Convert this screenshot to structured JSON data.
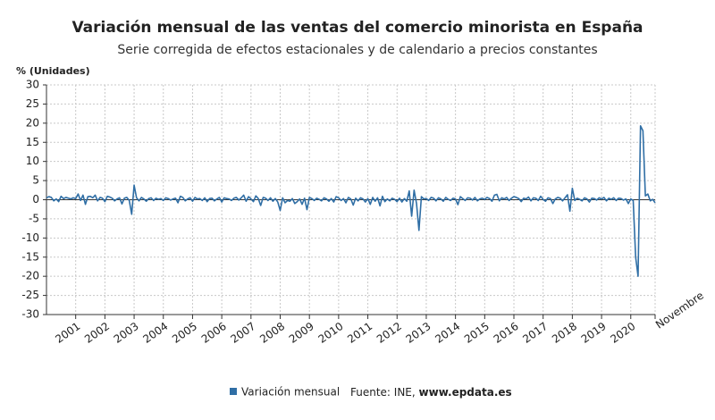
{
  "chart_data": {
    "type": "line",
    "title": "Variación mensual de las ventas del comercio minorista en España",
    "subtitle": "Serie corregida de efectos estacionales y de calendario a precios constantes",
    "y_label": "% (Unidades)",
    "source_label": "Fuente: INE,",
    "source_site": "www.epdata.es",
    "categories": [
      null,
      null,
      null,
      null,
      null,
      null,
      null,
      null,
      null,
      null,
      null,
      null,
      "2001",
      null,
      null,
      null,
      null,
      null,
      null,
      null,
      null,
      null,
      null,
      null,
      "2002",
      null,
      null,
      null,
      null,
      null,
      null,
      null,
      null,
      null,
      null,
      null,
      "2003",
      null,
      null,
      null,
      null,
      null,
      null,
      null,
      null,
      null,
      null,
      null,
      "2004",
      null,
      null,
      null,
      null,
      null,
      null,
      null,
      null,
      null,
      null,
      null,
      "2005",
      null,
      null,
      null,
      null,
      null,
      null,
      null,
      null,
      null,
      null,
      null,
      "2006",
      null,
      null,
      null,
      null,
      null,
      null,
      null,
      null,
      null,
      null,
      null,
      "2007",
      null,
      null,
      null,
      null,
      null,
      null,
      null,
      null,
      null,
      null,
      null,
      "2008",
      null,
      null,
      null,
      null,
      null,
      null,
      null,
      null,
      null,
      null,
      null,
      "2009",
      null,
      null,
      null,
      null,
      null,
      null,
      null,
      null,
      null,
      null,
      null,
      "2010",
      null,
      null,
      null,
      null,
      null,
      null,
      null,
      null,
      null,
      null,
      null,
      "2011",
      null,
      null,
      null,
      null,
      null,
      null,
      null,
      null,
      null,
      null,
      null,
      "2012",
      null,
      null,
      null,
      null,
      null,
      null,
      null,
      null,
      null,
      null,
      null,
      "2013",
      null,
      null,
      null,
      null,
      null,
      null,
      null,
      null,
      null,
      null,
      null,
      "2014",
      null,
      null,
      null,
      null,
      null,
      null,
      null,
      null,
      null,
      null,
      null,
      "2015",
      null,
      null,
      null,
      null,
      null,
      null,
      null,
      null,
      null,
      null,
      null,
      "2016",
      null,
      null,
      null,
      null,
      null,
      null,
      null,
      null,
      null,
      null,
      null,
      "2017",
      null,
      null,
      null,
      null,
      null,
      null,
      null,
      null,
      null,
      null,
      null,
      "2018",
      null,
      null,
      null,
      null,
      null,
      null,
      null,
      null,
      null,
      null,
      null,
      "2019",
      null,
      null,
      null,
      null,
      null,
      null,
      null,
      null,
      null,
      null,
      null,
      "2020",
      null,
      null,
      null,
      null,
      null,
      null,
      null,
      null,
      null,
      "Novembre"
    ],
    "series": [
      {
        "name": "Variación mensual",
        "color": "#2f6ea5",
        "values": [
          0.5,
          0.8,
          0.6,
          -0.3,
          0.2,
          -0.5,
          0.9,
          0.3,
          0.6,
          0.4,
          0.2,
          0.5,
          0.3,
          1.5,
          -0.2,
          1.2,
          -1.2,
          0.8,
          0.9,
          0.5,
          1.2,
          -0.3,
          0.6,
          0.4,
          -0.5,
          0.9,
          0.7,
          0.4,
          -0.3,
          0.2,
          0.5,
          -1.1,
          0.4,
          0.6,
          -0.2,
          -3.8,
          3.8,
          0.5,
          -0.3,
          0.6,
          0.2,
          -0.4,
          0.3,
          0.5,
          -0.2,
          0.4,
          0.1,
          0.3,
          -0.2,
          0.5,
          0.3,
          -0.1,
          0.2,
          0.4,
          -0.8,
          0.9,
          0.6,
          -0.3,
          0.2,
          0.5,
          -0.4,
          0.6,
          0.2,
          0.3,
          -0.2,
          0.5,
          -0.5,
          0.3,
          0.4,
          -0.3,
          0.2,
          0.6,
          -0.6,
          0.5,
          0.3,
          0.2,
          -0.2,
          0.4,
          0.6,
          -0.1,
          0.5,
          1.2,
          -0.4,
          0.8,
          0.2,
          -0.5,
          1.0,
          0.3,
          -1.5,
          0.6,
          0.4,
          -0.2,
          0.5,
          -0.4,
          0.3,
          -0.6,
          -2.8,
          0.5,
          -0.8,
          -0.2,
          -0.4,
          0.3,
          -1.0,
          -0.5,
          0.2,
          -1.2,
          0.4,
          -2.6,
          0.6,
          0.3,
          -0.2,
          0.4,
          0.1,
          -0.3,
          0.5,
          0.2,
          -0.4,
          0.3,
          -0.6,
          0.8,
          0.5,
          -0.2,
          0.3,
          -0.8,
          0.6,
          0.2,
          -1.4,
          0.4,
          -0.3,
          0.5,
          0.2,
          -0.6,
          0.3,
          -1.2,
          0.6,
          -0.4,
          0.5,
          -1.6,
          0.9,
          -0.5,
          0.2,
          -0.3,
          0.4,
          0.1,
          -0.5,
          0.4,
          -0.6,
          0.3,
          -0.4,
          2.3,
          -4.3,
          2.5,
          -1.0,
          -8.0,
          0.8,
          0.2,
          0.3,
          -0.2,
          0.6,
          0.4,
          -0.3,
          0.5,
          0.2,
          -0.4,
          0.6,
          0.1,
          -0.2,
          0.4,
          0.2,
          -1.3,
          0.8,
          0.3,
          -0.2,
          0.5,
          0.4,
          -0.1,
          0.6,
          -0.3,
          0.2,
          0.4,
          0.1,
          0.6,
          0.3,
          -0.4,
          1.2,
          1.4,
          -0.3,
          0.5,
          0.2,
          0.6,
          -0.2,
          0.4,
          0.8,
          0.6,
          0.3,
          -0.5,
          0.4,
          0.2,
          0.7,
          -0.3,
          0.5,
          0.4,
          -0.2,
          0.9,
          0.1,
          -0.4,
          0.5,
          0.3,
          -1.0,
          0.2,
          0.6,
          0.4,
          -0.3,
          0.5,
          1.3,
          -3.0,
          3.0,
          -0.2,
          0.4,
          0.1,
          -0.3,
          0.5,
          0.2,
          -0.6,
          0.4,
          0.3,
          -0.1,
          0.5,
          0.2,
          0.6,
          -0.3,
          0.4,
          0.1,
          0.5,
          -0.2,
          0.4,
          0.3,
          -0.1,
          0.2,
          -1.0,
          0.2,
          -0.2,
          -15.0,
          -20.0,
          19.3,
          18.0,
          1.0,
          1.5,
          -0.3,
          0.1,
          -0.8
        ]
      }
    ],
    "ylim": [
      -30,
      30
    ],
    "yticks": [
      -30,
      -25,
      -20,
      -15,
      -10,
      -5,
      0,
      5,
      10,
      15,
      20,
      25,
      30
    ],
    "grid": true
  }
}
